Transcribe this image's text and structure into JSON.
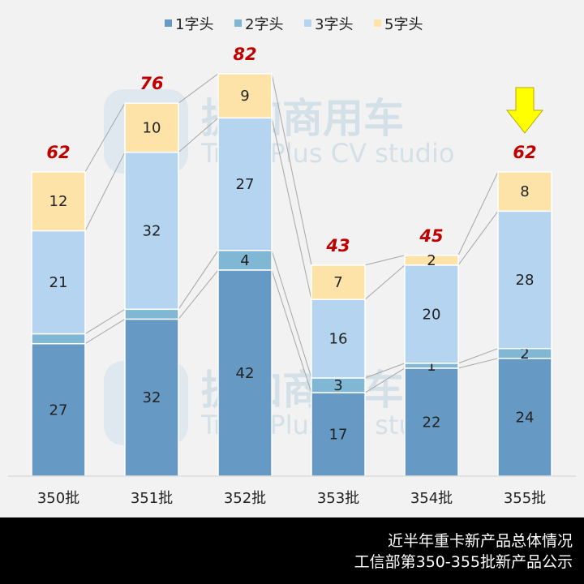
{
  "chart_data": {
    "type": "bar",
    "stacked": true,
    "title": "",
    "xlabel": "",
    "ylabel": "",
    "ylim": [
      0,
      82
    ],
    "grid": false,
    "legend_position": "top",
    "categories": [
      "350批",
      "351批",
      "352批",
      "353批",
      "354批",
      "355批"
    ],
    "series": [
      {
        "name": "1字头",
        "color": "#6699c4",
        "values": [
          27,
          32,
          42,
          17,
          22,
          24
        ],
        "labels": [
          true,
          true,
          true,
          true,
          true,
          true
        ]
      },
      {
        "name": "2字头",
        "color": "#7fb7d4",
        "values": [
          2,
          2,
          4,
          3,
          1,
          2
        ],
        "labels": [
          false,
          false,
          true,
          true,
          true,
          true
        ]
      },
      {
        "name": "3字头",
        "color": "#b4d4ef",
        "values": [
          21,
          32,
          27,
          16,
          20,
          28
        ],
        "labels": [
          true,
          true,
          true,
          true,
          true,
          true
        ]
      },
      {
        "name": "5字头",
        "color": "#fde3a7",
        "values": [
          12,
          10,
          9,
          7,
          2,
          8
        ],
        "labels": [
          true,
          true,
          true,
          true,
          true,
          true
        ]
      }
    ],
    "totals": [
      62,
      76,
      82,
      43,
      45,
      62
    ],
    "total_color": "#c00000",
    "highlight": {
      "category": "355批",
      "marker": "down-arrow-icon",
      "color": "#ffff00"
    }
  },
  "watermark": {
    "cn": "提加商用车",
    "en": "TruckPlus CV studio"
  },
  "footer": {
    "line1": "近半年重卡新产品总体情况",
    "line2": "工信部第350-355批新产品公示"
  }
}
